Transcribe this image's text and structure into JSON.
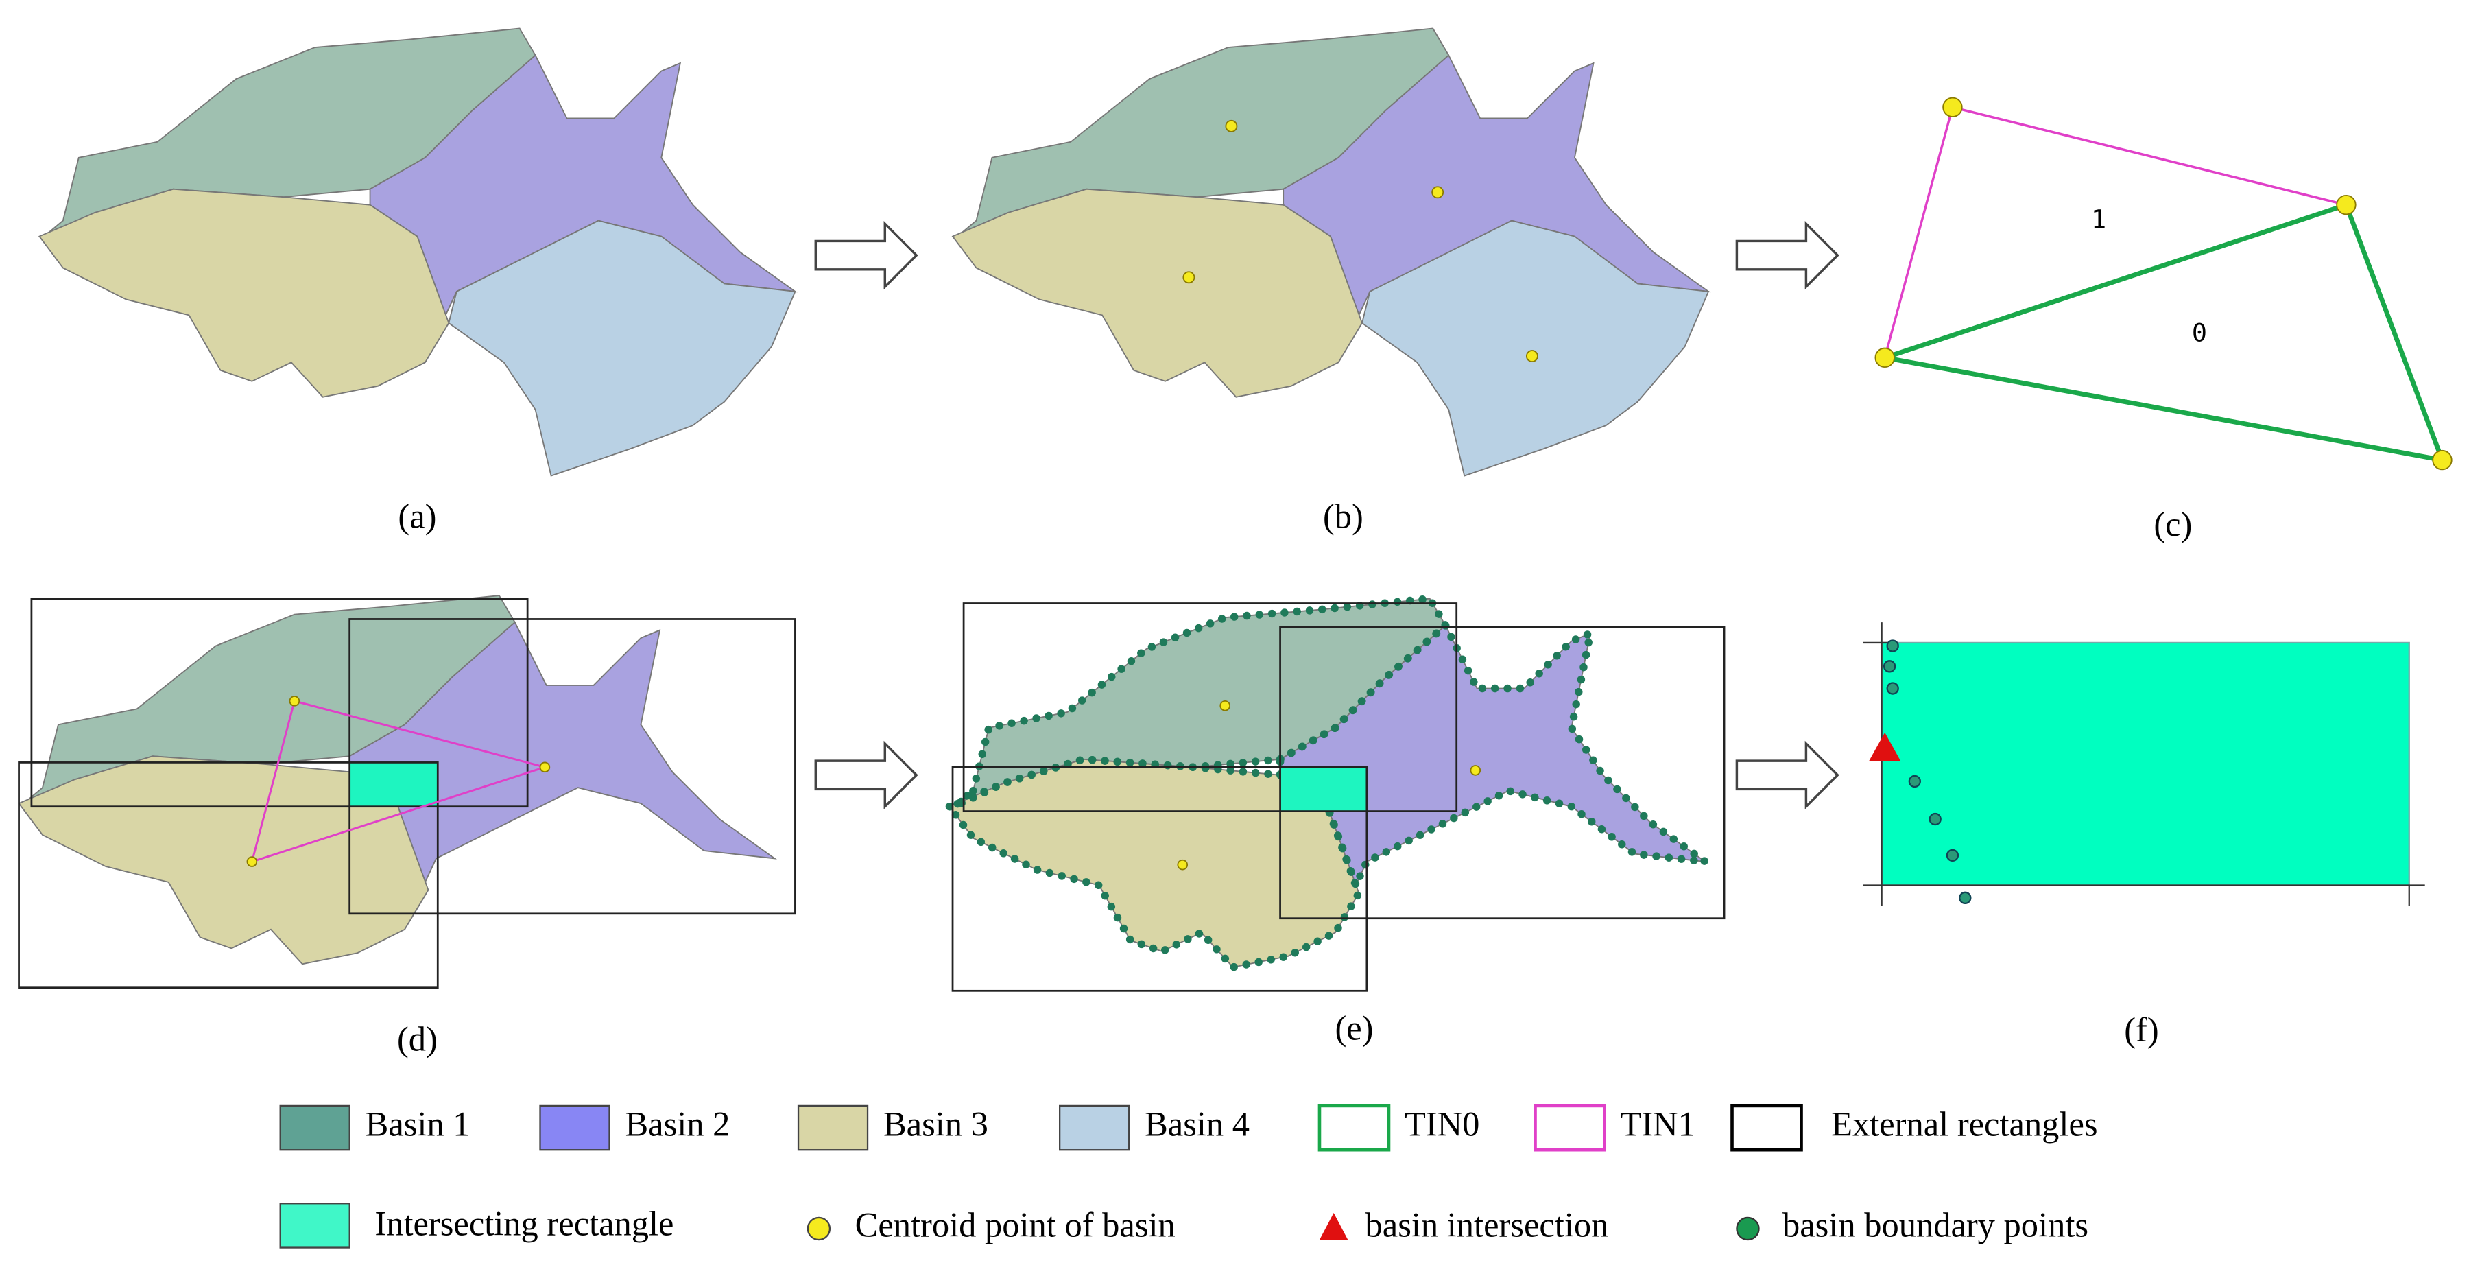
{
  "panels": [
    {
      "label": "(a)"
    },
    {
      "label": "(b)"
    },
    {
      "label": "(c)"
    },
    {
      "label": "(d)"
    },
    {
      "label": "(e)"
    },
    {
      "label": "(f)"
    }
  ],
  "triangles": [
    {
      "label": "1"
    },
    {
      "label": "0"
    }
  ],
  "legend": [
    {
      "label": "Basin 1"
    },
    {
      "label": "Basin 2"
    },
    {
      "label": "Basin 3"
    },
    {
      "label": "Basin 4"
    },
    {
      "label": "TIN0"
    },
    {
      "label": "TIN1"
    },
    {
      "label": "External rectangles"
    },
    {
      "label": "Intersecting rectangle"
    },
    {
      "label": "Centroid point of basin"
    },
    {
      "label": "basin intersection"
    },
    {
      "label": "basin boundary points"
    }
  ]
}
